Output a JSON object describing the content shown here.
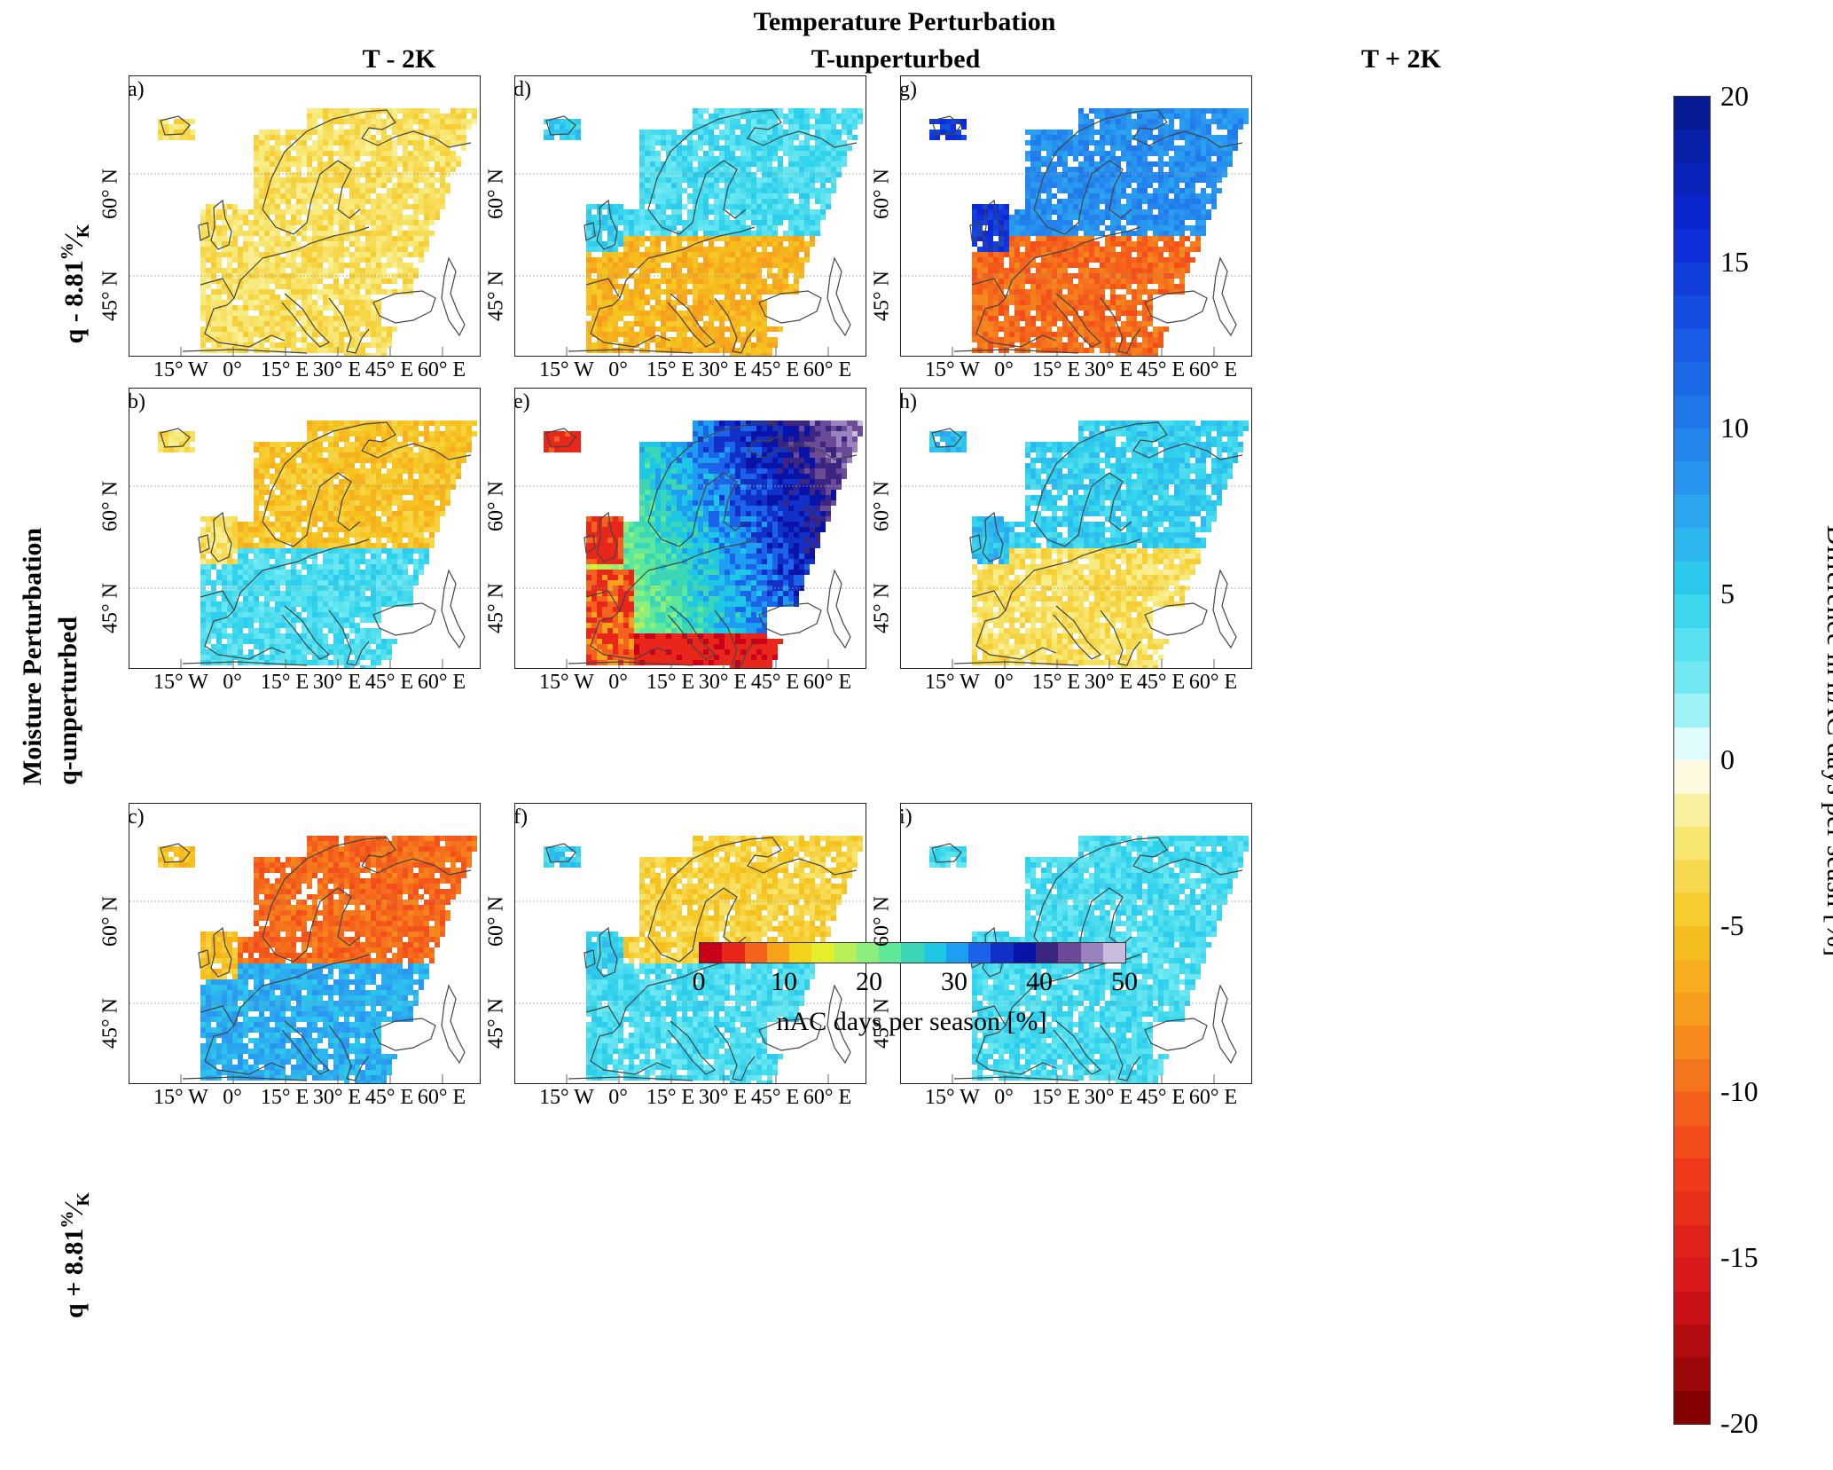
{
  "chart_data": {
    "type": "heatmap",
    "title": "Temperature Perturbation",
    "column_headers": [
      "T - 2K",
      "T-unperturbed",
      "T + 2K"
    ],
    "row_title": "Moisture Perturbation",
    "row_headers": [
      {
        "base": "q - 8.81",
        "frac_num": "%",
        "frac_den": "K"
      },
      {
        "base": "q-unperturbed",
        "frac_num": "",
        "frac_den": ""
      },
      {
        "base": "q + 8.81",
        "frac_num": "%",
        "frac_den": "K"
      }
    ],
    "lon_ticks": [
      "15° W",
      "0°",
      "15° E",
      "30° E",
      "45° E",
      "60° E"
    ],
    "lat_ticks": [
      "45° N",
      "60° N"
    ],
    "panels": [
      {
        "label": "a)",
        "row": 0,
        "col": 0,
        "kind": "diff",
        "north": -3,
        "south": -3,
        "coast": -3
      },
      {
        "label": "d)",
        "row": 0,
        "col": 1,
        "kind": "diff",
        "north": 4,
        "south": -6,
        "coast": 5
      },
      {
        "label": "g)",
        "row": 0,
        "col": 2,
        "kind": "diff",
        "north": 9,
        "south": -10,
        "coast": 15
      },
      {
        "label": "b)",
        "row": 1,
        "col": 0,
        "kind": "diff",
        "north": -5,
        "south": 4,
        "coast": -3
      },
      {
        "label": "e)",
        "row": 1,
        "col": 1,
        "kind": "abs"
      },
      {
        "label": "h)",
        "row": 1,
        "col": 2,
        "kind": "diff",
        "north": 5,
        "south": -3,
        "coast": 6
      },
      {
        "label": "c)",
        "row": 2,
        "col": 0,
        "kind": "diff",
        "north": -10,
        "south": 7,
        "coast": -5
      },
      {
        "label": "f)",
        "row": 2,
        "col": 1,
        "kind": "diff",
        "north": -4,
        "south": 4,
        "coast": 5
      },
      {
        "label": "i)",
        "row": 2,
        "col": 2,
        "kind": "diff",
        "north": 4,
        "south": 4,
        "coast": 4
      }
    ],
    "abs_colorbar": {
      "label": "nAC days per season [%]",
      "range": [
        0,
        50
      ],
      "ticks": [
        "0",
        "10",
        "20",
        "30",
        "40",
        "50"
      ],
      "colors": [
        "#c8001a",
        "#e8261a",
        "#f5621d",
        "#f8a21a",
        "#f3d21b",
        "#e2ef2a",
        "#b6ef58",
        "#8aef7d",
        "#5ee89a",
        "#3ad6b6",
        "#1ec7e3",
        "#1e9ef2",
        "#1b63e8",
        "#1030c8",
        "#0a13a8",
        "#3a2680",
        "#6c4a9a",
        "#9a82bc",
        "#c8bcdc"
      ]
    },
    "diff_colorbar": {
      "label": "Difference in nAC days per seasn [%]",
      "range": [
        -20,
        20
      ],
      "ticks": [
        "20",
        "15",
        "10",
        "5",
        "0",
        "-5",
        "-10",
        "-15",
        "-20"
      ]
    }
  }
}
